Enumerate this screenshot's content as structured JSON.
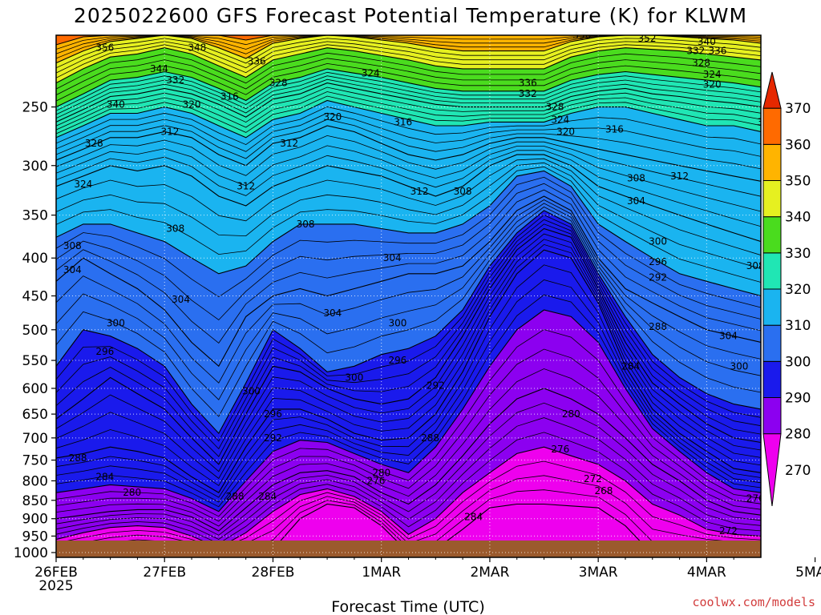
{
  "chart_data": {
    "type": "heatmap",
    "title": "2025022600 GFS Forecast Potential Temperature (K) for KLWM",
    "xlabel": "Forecast Time (UTC)",
    "ylabel": "",
    "credit": "coolwx.com/models",
    "x_ticks": [
      "26FEB",
      "27FEB",
      "28FEB",
      "1MAR",
      "2MAR",
      "3MAR",
      "4MAR",
      "5MAR"
    ],
    "x_year_label": "2025",
    "x_range_days": [
      0,
      6.5
    ],
    "y_ticks": [
      250,
      300,
      350,
      400,
      450,
      500,
      550,
      600,
      650,
      700,
      750,
      800,
      850,
      900,
      950,
      1000
    ],
    "y_range_hpa": [
      200,
      1015
    ],
    "y_scale": "log",
    "colorbar_ticks": [
      270,
      280,
      290,
      300,
      310,
      320,
      330,
      340,
      350,
      360,
      370
    ],
    "colorbar_range": [
      260,
      380
    ],
    "color_levels": [
      {
        "min": 260,
        "max": 280,
        "color": "#ee00ee"
      },
      {
        "min": 280,
        "max": 290,
        "color": "#8c00f0"
      },
      {
        "min": 290,
        "max": 300,
        "color": "#1a1aec"
      },
      {
        "min": 300,
        "max": 310,
        "color": "#2a6ff0"
      },
      {
        "min": 310,
        "max": 320,
        "color": "#1ab4f0"
      },
      {
        "min": 320,
        "max": 330,
        "color": "#20e6b4"
      },
      {
        "min": 330,
        "max": 340,
        "color": "#4adc1e"
      },
      {
        "min": 340,
        "max": 350,
        "color": "#e6f020"
      },
      {
        "min": 350,
        "max": 360,
        "color": "#ffb400"
      },
      {
        "min": 360,
        "max": 370,
        "color": "#ff6a00"
      },
      {
        "min": 370,
        "max": 380,
        "color": "#e62800"
      }
    ],
    "ground_color": "#9b5a2d",
    "isotherm_profiles": {
      "x_days": [
        0,
        0.25,
        0.5,
        0.75,
        1.0,
        1.25,
        1.5,
        1.75,
        2.0,
        2.25,
        2.5,
        2.75,
        3.0,
        3.25,
        3.5,
        3.75,
        4.0,
        4.25,
        4.5,
        4.75,
        5.0,
        5.25,
        5.5,
        5.75,
        6.0,
        6.25,
        6.5
      ],
      "levels": [
        {
          "theta": 276,
          "p": [
            1005,
            1000,
            985,
            975,
            980,
            990,
            1000,
            1005,
            990,
            900,
            860,
            870,
            920,
            1000,
            990,
            930,
            870,
            860,
            860,
            865,
            870,
            920,
            1005,
            1005,
            990,
            990,
            995
          ]
        },
        {
          "theta": 280,
          "p": [
            960,
            940,
            925,
            920,
            925,
            950,
            985,
            940,
            880,
            835,
            820,
            840,
            880,
            945,
            900,
            830,
            780,
            735,
            720,
            740,
            760,
            800,
            860,
            890,
            930,
            945,
            950
          ]
        },
        {
          "theta": 284,
          "p": [
            900,
            890,
            880,
            875,
            875,
            895,
            935,
            870,
            810,
            780,
            775,
            790,
            830,
            860,
            810,
            740,
            670,
            620,
            600,
            620,
            650,
            700,
            760,
            800,
            850,
            880,
            890
          ]
        },
        {
          "theta": 288,
          "p": [
            830,
            820,
            810,
            815,
            820,
            845,
            880,
            800,
            730,
            705,
            710,
            735,
            760,
            780,
            720,
            640,
            560,
            500,
            470,
            480,
            520,
            600,
            680,
            730,
            780,
            820,
            830
          ]
        },
        {
          "theta": 292,
          "p": [
            745,
            735,
            720,
            730,
            745,
            790,
            830,
            720,
            640,
            640,
            660,
            690,
            705,
            700,
            650,
            570,
            480,
            420,
            390,
            400,
            460,
            560,
            640,
            690,
            730,
            770,
            780
          ]
        },
        {
          "theta": 296,
          "p": [
            660,
            620,
            580,
            610,
            640,
            700,
            760,
            650,
            560,
            570,
            600,
            620,
            630,
            620,
            580,
            510,
            440,
            390,
            365,
            375,
            440,
            520,
            590,
            630,
            670,
            700,
            710
          ]
        },
        {
          "theta": 300,
          "p": [
            560,
            500,
            510,
            530,
            560,
            630,
            690,
            590,
            500,
            530,
            570,
            560,
            540,
            530,
            510,
            470,
            410,
            370,
            345,
            360,
            420,
            480,
            540,
            580,
            610,
            630,
            640
          ]
        },
        {
          "theta": 304,
          "p": [
            430,
            400,
            420,
            440,
            470,
            520,
            560,
            480,
            450,
            440,
            450,
            440,
            430,
            420,
            420,
            410,
            380,
            345,
            330,
            345,
            400,
            440,
            460,
            480,
            500,
            510,
            520
          ]
        },
        {
          "theta": 308,
          "p": [
            375,
            360,
            360,
            370,
            380,
            400,
            420,
            410,
            380,
            360,
            360,
            360,
            365,
            370,
            370,
            360,
            340,
            310,
            305,
            320,
            360,
            380,
            400,
            420,
            430,
            440,
            450
          ]
        },
        {
          "theta": 312,
          "p": [
            320,
            310,
            300,
            305,
            300,
            310,
            330,
            340,
            320,
            310,
            300,
            305,
            310,
            320,
            330,
            320,
            300,
            290,
            290,
            300,
            320,
            330,
            340,
            350,
            360,
            370,
            380
          ]
        },
        {
          "theta": 316,
          "p": [
            295,
            285,
            275,
            275,
            270,
            275,
            290,
            300,
            280,
            275,
            265,
            270,
            280,
            290,
            295,
            290,
            280,
            275,
            275,
            280,
            285,
            290,
            295,
            300,
            305,
            310,
            315
          ]
        },
        {
          "theta": 320,
          "p": [
            275,
            265,
            255,
            255,
            250,
            255,
            265,
            275,
            260,
            255,
            245,
            250,
            255,
            260,
            265,
            265,
            262,
            262,
            262,
            255,
            250,
            250,
            255,
            260,
            265,
            265,
            270
          ]
        },
        {
          "theta": 324,
          "p": [
            262,
            252,
            242,
            240,
            236,
            240,
            248,
            258,
            244,
            240,
            232,
            236,
            240,
            244,
            248,
            250,
            250,
            250,
            250,
            242,
            238,
            236,
            240,
            242,
            245,
            247,
            250
          ]
        },
        {
          "theta": 328,
          "p": [
            250,
            240,
            230,
            228,
            224,
            228,
            236,
            245,
            232,
            228,
            222,
            225,
            228,
            232,
            236,
            238,
            238,
            238,
            238,
            230,
            226,
            224,
            226,
            228,
            230,
            232,
            235
          ]
        },
        {
          "theta": 336,
          "p": [
            232,
            222,
            214,
            212,
            208,
            212,
            220,
            228,
            216,
            212,
            208,
            210,
            213,
            216,
            220,
            222,
            222,
            222,
            222,
            214,
            210,
            208,
            209,
            210,
            212,
            214,
            216
          ]
        },
        {
          "theta": 344,
          "p": [
            218,
            210,
            204,
            202,
            200,
            202,
            208,
            215,
            205,
            202,
            200,
            201,
            203,
            205,
            208,
            210,
            210,
            210,
            210,
            204,
            201,
            200,
            200,
            201,
            202,
            203,
            205
          ]
        },
        {
          "theta": 352,
          "p": [
            206,
            201,
            200,
            200,
            200,
            200,
            200,
            203,
            200,
            200,
            200,
            200,
            200,
            200,
            200,
            200,
            200,
            200,
            200,
            200,
            200,
            200,
            200,
            200,
            200,
            200,
            200
          ]
        }
      ]
    },
    "contour_labels": [
      {
        "text": "356",
        "x_days": 0.45,
        "p": 208
      },
      {
        "text": "348",
        "x_days": 1.3,
        "p": 208
      },
      {
        "text": "352",
        "x_days": 1.65,
        "p": 195
      },
      {
        "text": "344",
        "x_days": 0.95,
        "p": 222
      },
      {
        "text": "336",
        "x_days": 1.85,
        "p": 217
      },
      {
        "text": "332",
        "x_days": 1.1,
        "p": 230
      },
      {
        "text": "328",
        "x_days": 2.05,
        "p": 232
      },
      {
        "text": "340",
        "x_days": 0.55,
        "p": 248
      },
      {
        "text": "320",
        "x_days": 1.25,
        "p": 248
      },
      {
        "text": "316",
        "x_days": 1.6,
        "p": 242
      },
      {
        "text": "324",
        "x_days": 2.9,
        "p": 225
      },
      {
        "text": "340",
        "x_days": 3.1,
        "p": 198
      },
      {
        "text": "344",
        "x_days": 3.35,
        "p": 195
      },
      {
        "text": "356",
        "x_days": 4.85,
        "p": 200
      },
      {
        "text": "352",
        "x_days": 5.45,
        "p": 202
      },
      {
        "text": "348",
        "x_days": 5.75,
        "p": 198
      },
      {
        "text": "344",
        "x_days": 5.95,
        "p": 198
      },
      {
        "text": "340",
        "x_days": 6.0,
        "p": 204
      },
      {
        "text": "332",
        "x_days": 5.9,
        "p": 210
      },
      {
        "text": "336",
        "x_days": 6.1,
        "p": 210
      },
      {
        "text": "328",
        "x_days": 5.95,
        "p": 218
      },
      {
        "text": "324",
        "x_days": 6.05,
        "p": 226
      },
      {
        "text": "320",
        "x_days": 6.05,
        "p": 233
      },
      {
        "text": "336",
        "x_days": 4.35,
        "p": 232
      },
      {
        "text": "332",
        "x_days": 4.35,
        "p": 240
      },
      {
        "text": "328",
        "x_days": 4.6,
        "p": 250
      },
      {
        "text": "324",
        "x_days": 4.65,
        "p": 260
      },
      {
        "text": "320",
        "x_days": 4.7,
        "p": 270
      },
      {
        "text": "316",
        "x_days": 5.15,
        "p": 268
      },
      {
        "text": "316",
        "x_days": 6.55,
        "p": 262
      },
      {
        "text": "328",
        "x_days": 0.35,
        "p": 280
      },
      {
        "text": "312",
        "x_days": 1.05,
        "p": 270
      },
      {
        "text": "316",
        "x_days": 3.2,
        "p": 262
      },
      {
        "text": "320",
        "x_days": 2.55,
        "p": 258
      },
      {
        "text": "312",
        "x_days": 2.15,
        "p": 280
      },
      {
        "text": "324",
        "x_days": 0.25,
        "p": 318
      },
      {
        "text": "312",
        "x_days": 1.75,
        "p": 320
      },
      {
        "text": "312",
        "x_days": 3.35,
        "p": 325
      },
      {
        "text": "308",
        "x_days": 3.75,
        "p": 325
      },
      {
        "text": "308",
        "x_days": 5.35,
        "p": 312
      },
      {
        "text": "312",
        "x_days": 5.75,
        "p": 310
      },
      {
        "text": "304",
        "x_days": 5.35,
        "p": 335
      },
      {
        "text": "308",
        "x_days": 2.3,
        "p": 360
      },
      {
        "text": "308",
        "x_days": 1.1,
        "p": 365
      },
      {
        "text": "308",
        "x_days": 0.15,
        "p": 385
      },
      {
        "text": "304",
        "x_days": 0.15,
        "p": 415
      },
      {
        "text": "304",
        "x_days": 3.1,
        "p": 400
      },
      {
        "text": "312",
        "x_days": 6.95,
        "p": 380
      },
      {
        "text": "300",
        "x_days": 5.55,
        "p": 380
      },
      {
        "text": "296",
        "x_days": 5.55,
        "p": 405
      },
      {
        "text": "292",
        "x_days": 5.55,
        "p": 425
      },
      {
        "text": "308",
        "x_days": 6.45,
        "p": 410
      },
      {
        "text": "304",
        "x_days": 1.15,
        "p": 455
      },
      {
        "text": "304",
        "x_days": 2.55,
        "p": 475
      },
      {
        "text": "300",
        "x_days": 0.55,
        "p": 490
      },
      {
        "text": "300",
        "x_days": 3.15,
        "p": 490
      },
      {
        "text": "288",
        "x_days": 5.55,
        "p": 495
      },
      {
        "text": "304",
        "x_days": 6.2,
        "p": 510
      },
      {
        "text": "296",
        "x_days": 0.45,
        "p": 535
      },
      {
        "text": "296",
        "x_days": 3.15,
        "p": 550
      },
      {
        "text": "284",
        "x_days": 5.3,
        "p": 560
      },
      {
        "text": "300",
        "x_days": 6.3,
        "p": 560
      },
      {
        "text": "300",
        "x_days": 2.75,
        "p": 580
      },
      {
        "text": "292",
        "x_days": 3.5,
        "p": 595
      },
      {
        "text": "300",
        "x_days": 1.8,
        "p": 605
      },
      {
        "text": "296",
        "x_days": 6.6,
        "p": 605
      },
      {
        "text": "296",
        "x_days": 2.0,
        "p": 650
      },
      {
        "text": "292",
        "x_days": 6.65,
        "p": 640
      },
      {
        "text": "280",
        "x_days": 4.75,
        "p": 650
      },
      {
        "text": "292",
        "x_days": 2.0,
        "p": 700
      },
      {
        "text": "288",
        "x_days": 3.45,
        "p": 700
      },
      {
        "text": "288",
        "x_days": 6.8,
        "p": 715
      },
      {
        "text": "284",
        "x_days": 6.75,
        "p": 745
      },
      {
        "text": "276",
        "x_days": 4.65,
        "p": 725
      },
      {
        "text": "280",
        "x_days": 6.7,
        "p": 775
      },
      {
        "text": "288",
        "x_days": 0.2,
        "p": 745
      },
      {
        "text": "284",
        "x_days": 0.45,
        "p": 790
      },
      {
        "text": "272",
        "x_days": 4.95,
        "p": 795
      },
      {
        "text": "280",
        "x_days": 3.0,
        "p": 780
      },
      {
        "text": "276",
        "x_days": 2.95,
        "p": 800
      },
      {
        "text": "280",
        "x_days": 0.7,
        "p": 830
      },
      {
        "text": "288",
        "x_days": 1.65,
        "p": 840
      },
      {
        "text": "284",
        "x_days": 1.95,
        "p": 840
      },
      {
        "text": "268",
        "x_days": 5.05,
        "p": 825
      },
      {
        "text": "276",
        "x_days": 6.45,
        "p": 845
      },
      {
        "text": "284",
        "x_days": 3.85,
        "p": 895
      },
      {
        "text": "272",
        "x_days": 6.2,
        "p": 935
      }
    ]
  }
}
